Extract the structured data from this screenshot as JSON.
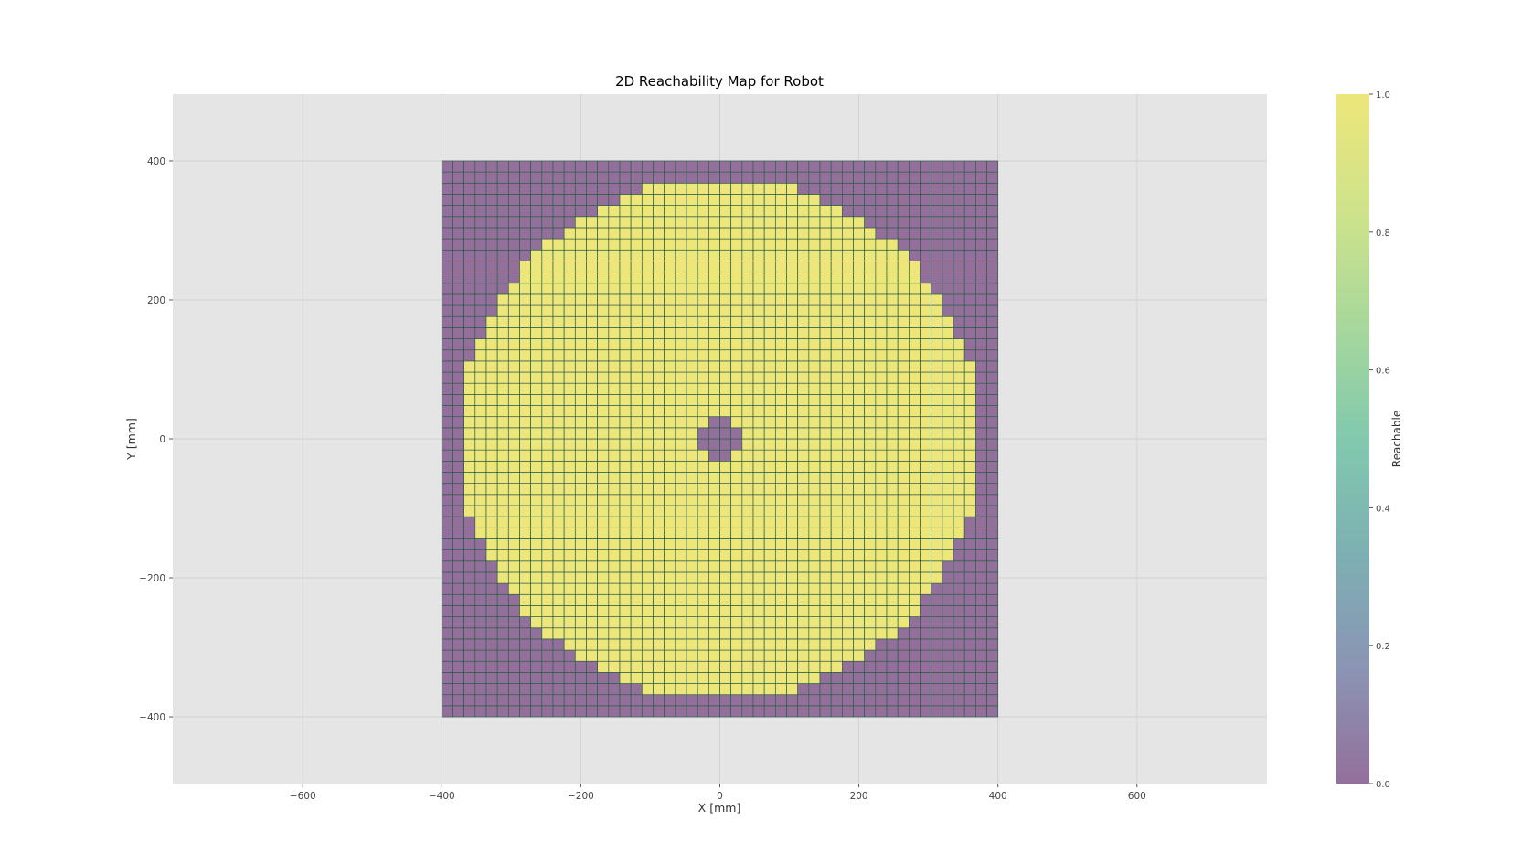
{
  "chart_data": {
    "type": "heatmap",
    "title": "2D Reachability Map for Robot",
    "xlabel": "X [mm]",
    "ylabel": "Y [mm]",
    "xlim": [
      -787,
      787
    ],
    "ylim": [
      -496,
      496
    ],
    "xticks": [
      -600,
      -400,
      -200,
      0,
      200,
      400,
      600
    ],
    "xtick_labels": [
      "−600",
      "−400",
      "−200",
      "0",
      "200",
      "400",
      "600"
    ],
    "yticks": [
      -400,
      -200,
      0,
      200,
      400
    ],
    "ytick_labels": [
      "−400",
      "−200",
      "0",
      "200",
      "400"
    ],
    "grid": true,
    "grid_x": {
      "min": -400,
      "max": 400,
      "cells": 50
    },
    "grid_y": {
      "min": -400,
      "max": 400,
      "cells": 50
    },
    "values": [
      0,
      1
    ],
    "reachable_rule": "1 where inner_radius <= sqrt(x^2 + y^2) <= outer_radius at cell center, else 0",
    "outer_radius": 375,
    "inner_radius": 30,
    "colors": {
      "reachable": "#ede67a",
      "unreachable": "#93709b",
      "cell_edge": "#2e5e46",
      "axes_bg": "#e5e5e5",
      "gridline": "#d2d2d2"
    },
    "colorbar": {
      "label": "Reachable",
      "range": [
        0.0,
        1.0
      ],
      "ticks": [
        0.0,
        0.2,
        0.4,
        0.6,
        0.8,
        1.0
      ],
      "tick_labels": [
        "0.0",
        "0.2",
        "0.4",
        "0.6",
        "0.8",
        "1.0"
      ],
      "stops": [
        "#93709b",
        "#8b94b4",
        "#7db0b3",
        "#82c9ae",
        "#a8d89b",
        "#cfe38a",
        "#ede67a"
      ]
    }
  }
}
